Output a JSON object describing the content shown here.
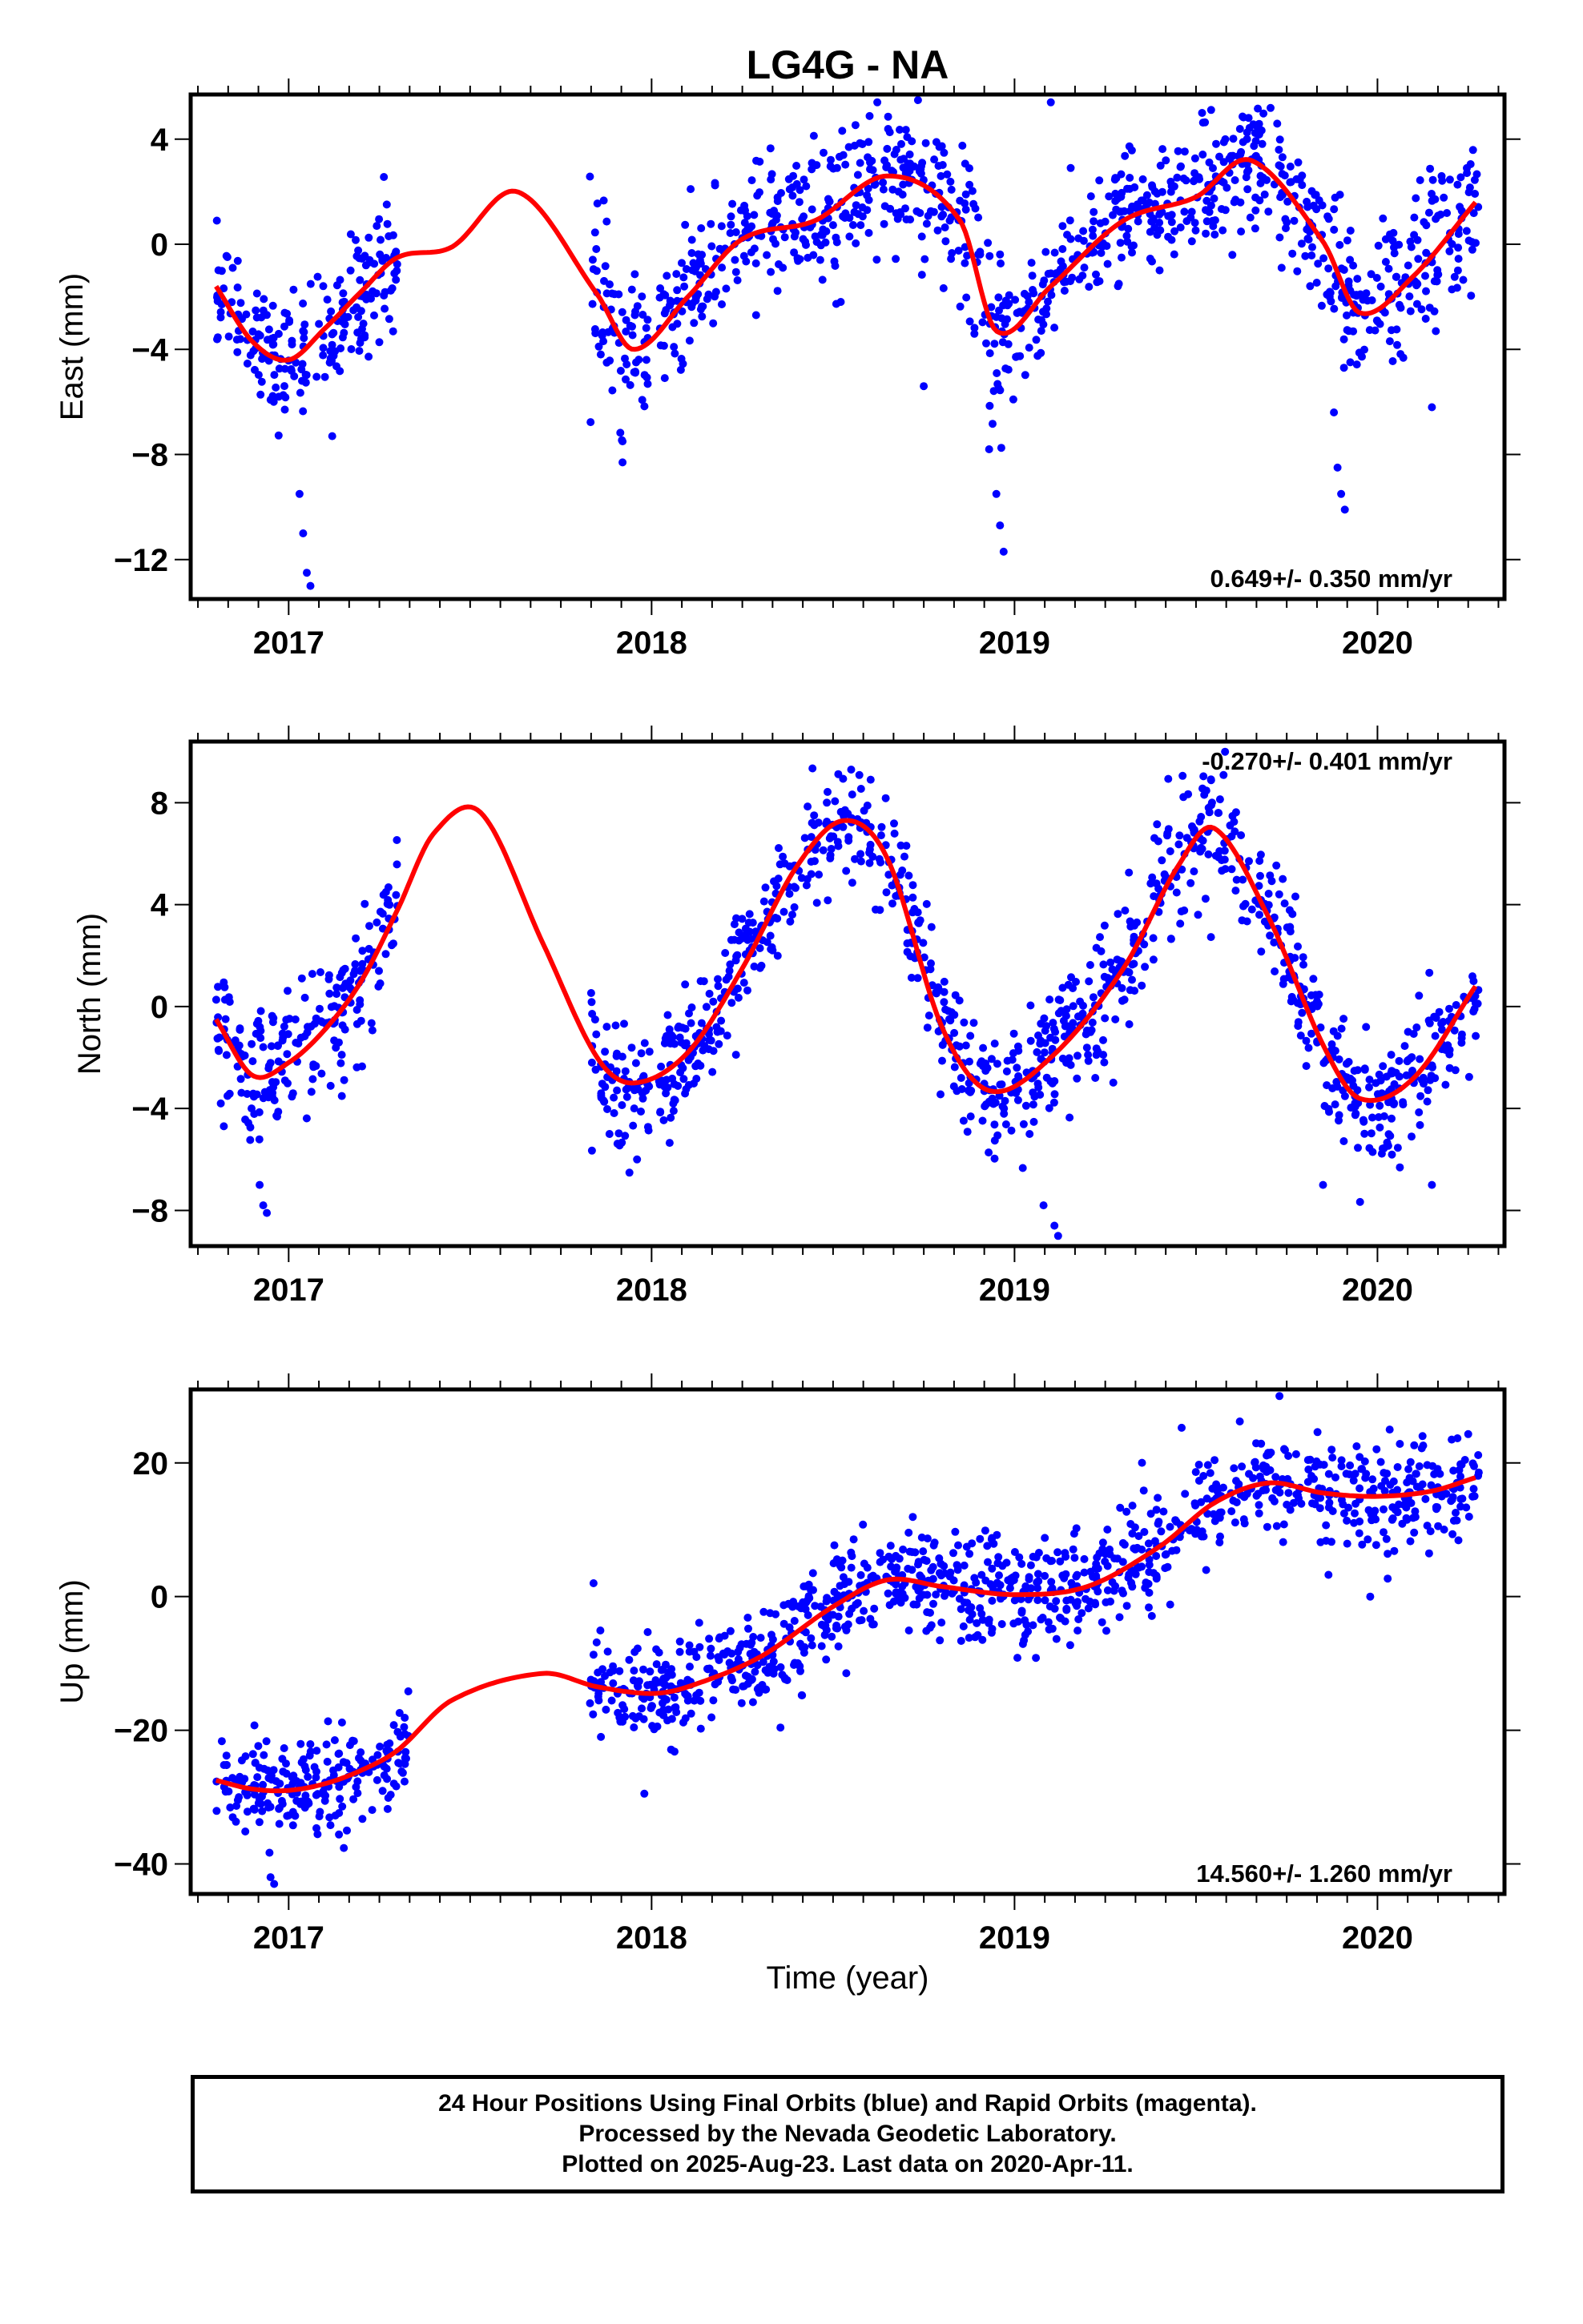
{
  "title": "LG4G - NA",
  "xlabel": "Time (year)",
  "footer": {
    "line1": "24 Hour Positions Using Final Orbits (blue) and Rapid Orbits (magenta).",
    "line2": "Processed by the Nevada Geodetic Laboratory.",
    "line3": "Plotted on 2025-Aug-23. Last data on 2020-Apr-11."
  },
  "colors": {
    "points": "#0000ff",
    "fit": "#ff0000",
    "frame": "#000000"
  },
  "chart_data": [
    {
      "type": "scatter",
      "ylabel": "East (mm)",
      "rate": "0.649+/- 0.350 mm/yr",
      "xlim": [
        2016.73,
        2020.35
      ],
      "ylim": [
        -13.5,
        5.7
      ],
      "xticks": [
        "2017",
        "2018",
        "2019",
        "2020"
      ],
      "yticks": [
        4,
        0,
        -4,
        -8,
        -12
      ],
      "yticklabels": [
        "4",
        "0",
        "−4",
        "−8",
        "−12"
      ],
      "series": [
        {
          "x": [
            2016.8,
            2016.9,
            2017.0,
            2017.1,
            2017.2,
            2017.3,
            2017.45,
            2017.63,
            2017.85,
            2017.95,
            2018.1,
            2018.25,
            2018.45,
            2018.65,
            2018.85,
            2018.95,
            2019.1,
            2019.3,
            2019.5,
            2019.65,
            2019.85,
            2019.95,
            2020.1,
            2020.27
          ],
          "y": [
            -1.6,
            -3.7,
            -4.4,
            -3.2,
            -1.8,
            -0.5,
            -0.1,
            2.0,
            -1.9,
            -4.0,
            -2.0,
            0.2,
            0.9,
            2.6,
            0.9,
            -3.3,
            -1.6,
            0.9,
            1.8,
            3.2,
            0.1,
            -2.6,
            -1.2,
            1.6
          ]
        }
      ],
      "scatter_summary": [
        {
          "x0": 2016.8,
          "x1": 2017.3,
          "trend": "follows fit",
          "spread": 1.2,
          "outliers": [
            [
              2017.03,
              -9.5
            ],
            [
              2017.04,
              -11.0
            ],
            [
              2017.05,
              -12.5
            ],
            [
              2017.06,
              -13.0
            ],
            [
              2017.12,
              -7.3
            ]
          ]
        },
        {
          "x0": 2017.83,
          "x1": 2018.0,
          "trend": "follows fit",
          "spread": 1.5,
          "outliers": [
            [
              2017.92,
              -8.3
            ],
            [
              2017.92,
              -7.5
            ]
          ]
        },
        {
          "x0": 2018.02,
          "x1": 2018.85,
          "trend": "follows fit",
          "spread": 1.3,
          "outliers": [
            [
              2018.75,
              -5.4
            ]
          ]
        },
        {
          "x0": 2018.85,
          "x1": 2019.0,
          "trend": "follows fit",
          "spread": 1.8,
          "outliers": [
            [
              2018.95,
              -9.5
            ],
            [
              2018.96,
              -10.7
            ],
            [
              2018.97,
              -11.7
            ],
            [
              2018.93,
              -7.8
            ]
          ]
        },
        {
          "x0": 2019.0,
          "x1": 2019.85,
          "trend": "follows fit",
          "spread": 1.2,
          "outliers": [
            [
              2019.1,
              5.4
            ]
          ]
        },
        {
          "x0": 2019.85,
          "x1": 2020.28,
          "trend": "follows fit",
          "spread": 1.5,
          "outliers": [
            [
              2019.88,
              -6.4
            ],
            [
              2019.89,
              -8.5
            ],
            [
              2019.9,
              -9.5
            ],
            [
              2019.91,
              -10.1
            ],
            [
              2020.15,
              -6.2
            ]
          ]
        }
      ]
    },
    {
      "type": "scatter",
      "ylabel": "North (mm)",
      "rate": "-0.270+/- 0.401 mm/yr",
      "xlim": [
        2016.73,
        2020.35
      ],
      "ylim": [
        -9.4,
        10.4
      ],
      "xticks": [
        "2017",
        "2018",
        "2019",
        "2020"
      ],
      "yticks": [
        8,
        4,
        0,
        -4,
        -8
      ],
      "yticklabels": [
        "8",
        "4",
        "0",
        "−4",
        "−8"
      ],
      "series": [
        {
          "x": [
            2016.8,
            2016.9,
            2017.0,
            2017.1,
            2017.2,
            2017.3,
            2017.4,
            2017.53,
            2017.7,
            2017.85,
            2017.95,
            2018.1,
            2018.25,
            2018.4,
            2018.53,
            2018.65,
            2018.8,
            2018.93,
            2019.1,
            2019.3,
            2019.45,
            2019.55,
            2019.7,
            2019.85,
            2019.95,
            2020.1,
            2020.27
          ],
          "y": [
            -0.5,
            -2.7,
            -2.2,
            -0.9,
            1.0,
            3.8,
            6.8,
            7.6,
            2.5,
            -2.0,
            -3.0,
            -1.8,
            1.5,
            5.5,
            7.3,
            5.8,
            -0.8,
            -3.3,
            -2.0,
            1.5,
            5.5,
            7.0,
            3.5,
            -1.5,
            -3.6,
            -2.8,
            0.8
          ]
        }
      ],
      "scatter_summary": [
        {
          "x0": 2016.8,
          "x1": 2017.3,
          "trend": "follows fit",
          "spread": 1.3,
          "outliers": [
            [
              2016.92,
              -7.0
            ],
            [
              2016.93,
              -7.8
            ],
            [
              2016.94,
              -8.1
            ]
          ]
        },
        {
          "x0": 2017.83,
          "x1": 2018.0,
          "trend": "follows fit",
          "spread": 1.2,
          "outliers": [
            [
              2017.96,
              -6.0
            ]
          ]
        },
        {
          "x0": 2018.02,
          "x1": 2018.85,
          "trend": "follows fit",
          "spread": 1.2,
          "outliers": [
            [
              2018.55,
              9.3
            ]
          ]
        },
        {
          "x0": 2018.85,
          "x1": 2019.85,
          "trend": "follows fit",
          "spread": 1.3,
          "outliers": [
            [
              2019.08,
              -7.8
            ],
            [
              2019.11,
              -8.6
            ],
            [
              2019.12,
              -9.0
            ],
            [
              2019.58,
              10.0
            ]
          ]
        },
        {
          "x0": 2019.85,
          "x1": 2020.28,
          "trend": "follows fit",
          "spread": 1.2,
          "outliers": [
            [
              2019.85,
              -7.0
            ],
            [
              2020.15,
              -7.0
            ]
          ]
        }
      ]
    },
    {
      "type": "scatter",
      "ylabel": "Up (mm)",
      "rate": "14.560+/- 1.260 mm/yr",
      "xlim": [
        2016.73,
        2020.35
      ],
      "ylim": [
        -44.5,
        31.0
      ],
      "xticks": [
        "2017",
        "2018",
        "2019",
        "2020"
      ],
      "yticks": [
        20,
        0,
        -20,
        -40
      ],
      "yticklabels": [
        "20",
        "0",
        "−20",
        "−40"
      ],
      "series": [
        {
          "x": [
            2016.8,
            2016.9,
            2017.0,
            2017.1,
            2017.2,
            2017.3,
            2017.45,
            2017.7,
            2017.85,
            2018.0,
            2018.1,
            2018.3,
            2018.5,
            2018.65,
            2018.8,
            2019.0,
            2019.2,
            2019.4,
            2019.55,
            2019.7,
            2019.85,
            2020.0,
            2020.15,
            2020.27
          ],
          "y": [
            -27.5,
            -28.8,
            -29.0,
            -28.0,
            -26.0,
            -23.0,
            -15.5,
            -11.5,
            -13.5,
            -14.5,
            -13.5,
            -9.0,
            -1.5,
            2.5,
            1.5,
            0.3,
            1.5,
            7.5,
            14.0,
            17.0,
            15.5,
            15.0,
            15.8,
            17.8
          ]
        }
      ],
      "scatter_summary": [
        {
          "x0": 2016.8,
          "x1": 2017.33,
          "trend": "follows fit",
          "spread": 3.5,
          "outliers": [
            [
              2016.95,
              -42.0
            ],
            [
              2016.96,
              -43.0
            ]
          ]
        },
        {
          "x0": 2017.83,
          "x1": 2018.0,
          "trend": "follows fit",
          "spread": 3.5,
          "outliers": [
            [
              2017.84,
              2.0
            ],
            [
              2017.98,
              -29.5
            ]
          ]
        },
        {
          "x0": 2018.0,
          "x1": 2020.28,
          "trend": "follows fit",
          "spread": 4.0,
          "outliers": [
            [
              2019.73,
              30.0
            ],
            [
              2019.98,
              0.0
            ]
          ]
        }
      ]
    }
  ]
}
